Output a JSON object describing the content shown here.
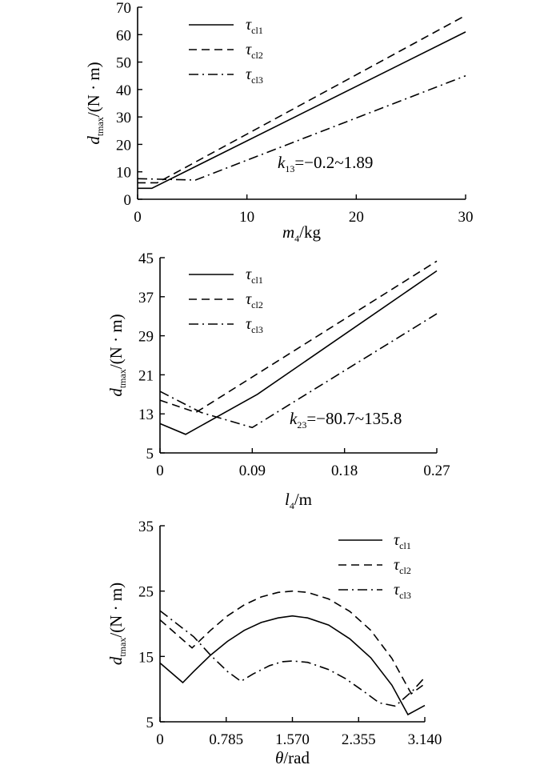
{
  "chart_data": [
    {
      "type": "line",
      "xlabel": {
        "main": "m",
        "sub": "4",
        "rest": "/kg"
      },
      "ylabel": {
        "main": "d",
        "sub": "tmax",
        "rest": "/(N · m)"
      },
      "xlim": [
        0,
        30
      ],
      "ylim": [
        0,
        70
      ],
      "xticks": [
        "0",
        "10",
        "20",
        "30"
      ],
      "xtick_values": [
        0,
        10,
        20,
        30
      ],
      "yticks": [
        "0",
        "10",
        "20",
        "30",
        "40",
        "50",
        "60",
        "70"
      ],
      "ytick_values": [
        0,
        10,
        20,
        30,
        40,
        50,
        60,
        70
      ],
      "annotation": {
        "main": "k",
        "sub": "13",
        "rest": "=−0.2~1.89"
      },
      "legend_position": "top-left",
      "series": [
        {
          "name": "τ",
          "sub": "cl1",
          "style": "solid",
          "x": [
            0,
            1.3,
            30
          ],
          "y": [
            4,
            4,
            61
          ]
        },
        {
          "name": "τ",
          "sub": "cl2",
          "style": "dashed",
          "x": [
            0,
            1.8,
            30
          ],
          "y": [
            6,
            6,
            67
          ]
        },
        {
          "name": "τ",
          "sub": "cl3",
          "style": "dashdot",
          "x": [
            0,
            5.3,
            30
          ],
          "y": [
            7.5,
            7,
            45
          ]
        }
      ]
    },
    {
      "type": "line",
      "xlabel": {
        "main": "l",
        "sub": "4",
        "rest": "/m"
      },
      "ylabel": {
        "main": "d",
        "sub": "tmax",
        "rest": "/(N · m)"
      },
      "xlim": [
        0,
        0.27
      ],
      "ylim": [
        5,
        45
      ],
      "xticks": [
        "0",
        "0.09",
        "0.18",
        "0.27"
      ],
      "xtick_values": [
        0,
        0.09,
        0.18,
        0.27
      ],
      "yticks": [
        "5",
        "13",
        "21",
        "29",
        "37",
        "45"
      ],
      "ytick_values": [
        5,
        13,
        21,
        29,
        37,
        45
      ],
      "annotation": {
        "main": "k",
        "sub": "23",
        "rest": "=−80.7~135.8"
      },
      "legend_position": "top-left",
      "series": [
        {
          "name": "τ",
          "sub": "cl1",
          "style": "solid",
          "x": [
            0,
            0.025,
            0.095,
            0.27
          ],
          "y": [
            11,
            8.8,
            17,
            42.3
          ]
        },
        {
          "name": "τ",
          "sub": "cl2",
          "style": "dashed",
          "x": [
            0,
            0.035,
            0.27
          ],
          "y": [
            15.8,
            13.3,
            44.3
          ]
        },
        {
          "name": "τ",
          "sub": "cl3",
          "style": "dashdot",
          "x": [
            0,
            0.04,
            0.09,
            0.27
          ],
          "y": [
            17.6,
            13.3,
            10.2,
            33.5
          ]
        }
      ]
    },
    {
      "type": "line",
      "xlabel": {
        "main": "θ",
        "sub": "",
        "rest": "/rad"
      },
      "ylabel": {
        "main": "d",
        "sub": "tmax",
        "rest": "/(N · m)"
      },
      "xlim": [
        0,
        3.14
      ],
      "ylim": [
        5,
        35
      ],
      "xticks": [
        "0",
        "0.785",
        "1.570",
        "2.355",
        "3.140"
      ],
      "xtick_values": [
        0,
        0.785,
        1.57,
        2.355,
        3.14
      ],
      "yticks": [
        "5",
        "15",
        "25",
        "35"
      ],
      "ytick_values": [
        5,
        15,
        25,
        35
      ],
      "legend_position": "top-right",
      "series": [
        {
          "name": "τ",
          "sub": "cl1",
          "style": "solid",
          "x": [
            0,
            0.27,
            0.4,
            0.6,
            0.8,
            1.0,
            1.2,
            1.4,
            1.57,
            1.75,
            2.0,
            2.25,
            2.5,
            2.75,
            2.94,
            3.14
          ],
          "y": [
            14,
            11,
            12.7,
            15.2,
            17.3,
            19.0,
            20.2,
            20.9,
            21.2,
            20.9,
            19.8,
            17.7,
            14.8,
            10.6,
            6.1,
            7.5
          ]
        },
        {
          "name": "τ",
          "sub": "cl2",
          "style": "dashed",
          "x": [
            0,
            0.38,
            0.6,
            0.8,
            1.0,
            1.2,
            1.4,
            1.57,
            1.75,
            2.0,
            2.25,
            2.5,
            2.75,
            2.98,
            3.14
          ],
          "y": [
            20.6,
            16.3,
            19.0,
            21.2,
            22.9,
            24.1,
            24.8,
            25.0,
            24.8,
            23.8,
            21.9,
            19.0,
            14.7,
            9.3,
            10.8
          ]
        },
        {
          "name": "τ",
          "sub": "cl3",
          "style": "dashdot",
          "x": [
            0,
            0.4,
            0.6,
            0.8,
            0.96,
            1.1,
            1.3,
            1.45,
            1.57,
            1.75,
            2.0,
            2.2,
            2.4,
            2.6,
            2.79,
            3.0,
            3.14
          ],
          "y": [
            22.0,
            18.0,
            15.2,
            12.7,
            11.2,
            12.3,
            13.6,
            14.2,
            14.3,
            14.1,
            13.0,
            11.6,
            9.8,
            7.9,
            7.4,
            9.8,
            11.8
          ]
        }
      ]
    }
  ]
}
